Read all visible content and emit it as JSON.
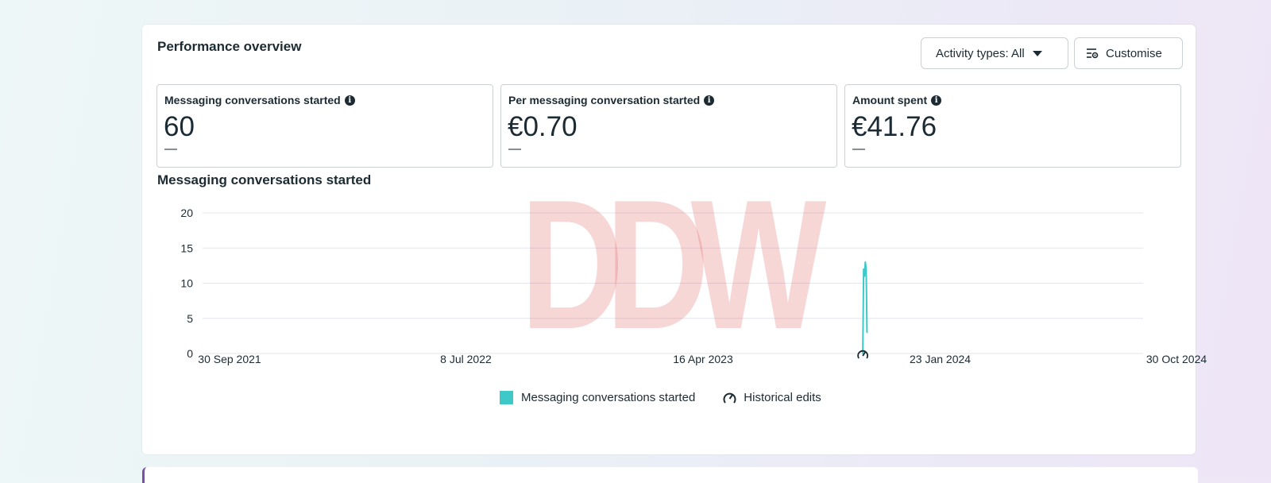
{
  "panel": {
    "title": "Performance overview",
    "activity_button": "Activity types: All",
    "customise_button": "Customise"
  },
  "metrics": [
    {
      "label": "Messaging conversations started",
      "value": "60",
      "delta": "—"
    },
    {
      "label": "Per messaging conversation started",
      "value": "€0.70",
      "delta": "—"
    },
    {
      "label": "Amount spent",
      "value": "€41.76",
      "delta": "—"
    }
  ],
  "icons": {
    "info": "info-icon",
    "caret": "caret-down-icon",
    "customise": "sliders-gear-icon",
    "history": "gauge-pencil-icon"
  },
  "colors": {
    "series": "#3ec8c8",
    "text": "#1c2b33",
    "border": "#ccd0d5",
    "grid": "#e4e6eb"
  },
  "chart_title": "Messaging conversations started",
  "chart_data": {
    "type": "line",
    "title": "Messaging conversations started",
    "xlabel": "",
    "ylabel": "",
    "ylim": [
      0,
      20
    ],
    "yticks": [
      0,
      5,
      10,
      15,
      20
    ],
    "x_tick_labels": [
      "30 Sep 2021",
      "8 Jul 2022",
      "16 Apr 2023",
      "23 Jan 2024",
      "30 Oct 2024"
    ],
    "series": [
      {
        "name": "Messaging conversations started",
        "color": "#3ec8c8",
        "points": [
          {
            "x": "2023-10-23",
            "y": 0
          },
          {
            "x": "2023-10-24",
            "y": 12
          },
          {
            "x": "2023-10-25",
            "y": 11
          },
          {
            "x": "2023-10-26",
            "y": 13
          },
          {
            "x": "2023-10-27",
            "y": 12
          },
          {
            "x": "2023-10-28",
            "y": 3
          }
        ]
      }
    ],
    "markers": [
      {
        "x": "2023-10-23",
        "label": "Historical edits"
      }
    ],
    "grid": true,
    "legend": "bottom-center"
  },
  "legend": {
    "series_label": "Messaging conversations started",
    "edits_label": "Historical edits"
  },
  "watermark": "DDW"
}
